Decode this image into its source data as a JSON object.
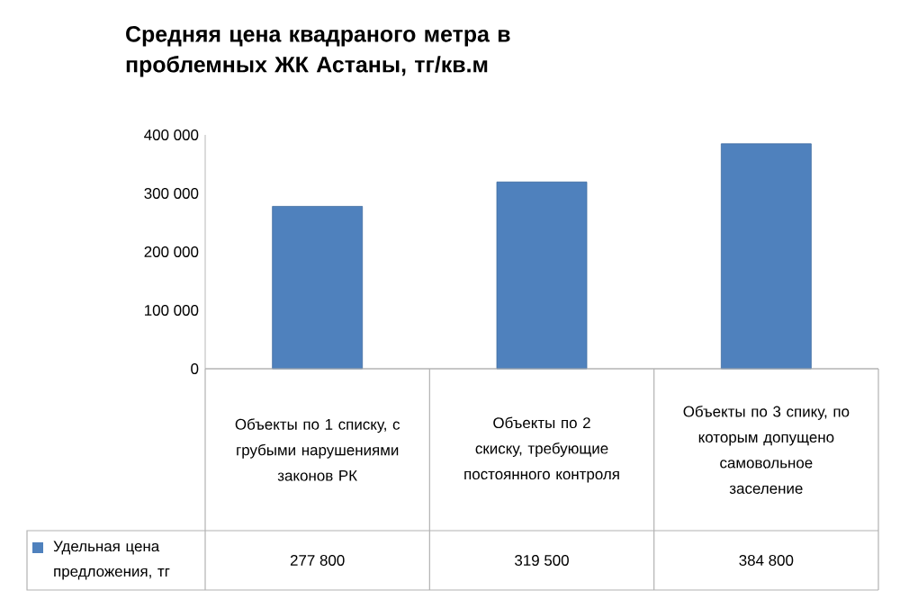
{
  "chart_data": {
    "type": "bar",
    "title": "Средняя цена квадраного метра в проблемных ЖК Астаны, тг/кв.м",
    "categories": [
      "Объекты по 1 списку, с грубыми нарушениями законов РК",
      "Объекты по 2 скиску, требующие постоянного контроля",
      "Объекты по 3 спику, по которым допущено самовольное заселение"
    ],
    "series": [
      {
        "name": "Удельная цена предложения, тг",
        "color": "#4f81bd",
        "values": [
          277800,
          319500,
          384800
        ],
        "value_labels": [
          "277 800",
          "319 500",
          "384 800"
        ]
      }
    ],
    "ylim": [
      0,
      400000
    ],
    "yticks": [
      {
        "value": 0,
        "label": "0"
      },
      {
        "value": 100000,
        "label": "100 000"
      },
      {
        "value": 200000,
        "label": "200 000"
      },
      {
        "value": 300000,
        "label": "300 000"
      },
      {
        "value": 400000,
        "label": "400 000"
      }
    ],
    "legend": "bottom left",
    "grid": false
  }
}
